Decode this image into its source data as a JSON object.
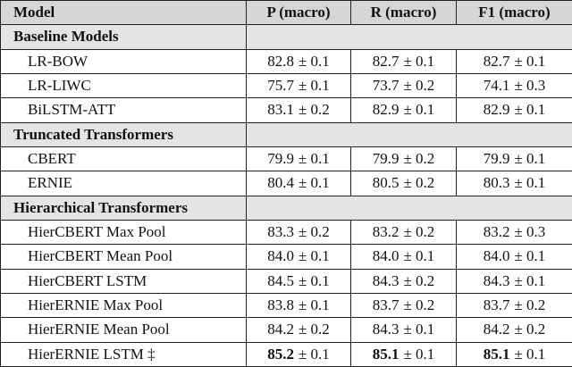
{
  "table": {
    "header": [
      "Model",
      "P (macro)",
      "R (macro)",
      "F1 (macro)"
    ],
    "sections": [
      {
        "title": "Baseline Models",
        "rows": [
          {
            "model": "LR-BOW",
            "cells": [
              {
                "mean": "82.8",
                "err": "± 0.1"
              },
              {
                "mean": "82.7",
                "err": "± 0.1"
              },
              {
                "mean": "82.7",
                "err": "± 0.1"
              }
            ]
          },
          {
            "model": "LR-LIWC",
            "cells": [
              {
                "mean": "75.7",
                "err": "± 0.1"
              },
              {
                "mean": "73.7",
                "err": "± 0.2"
              },
              {
                "mean": "74.1",
                "err": "± 0.3"
              }
            ]
          },
          {
            "model": "BiLSTM-ATT",
            "cells": [
              {
                "mean": "83.1",
                "err": "± 0.2"
              },
              {
                "mean": "82.9",
                "err": "± 0.1"
              },
              {
                "mean": "82.9",
                "err": "± 0.1"
              }
            ]
          }
        ]
      },
      {
        "title": "Truncated Transformers",
        "rows": [
          {
            "model": "CBERT",
            "cells": [
              {
                "mean": "79.9",
                "err": "± 0.1"
              },
              {
                "mean": "79.9",
                "err": "± 0.2"
              },
              {
                "mean": "79.9",
                "err": "± 0.1"
              }
            ]
          },
          {
            "model": "ERNIE",
            "cells": [
              {
                "mean": "80.4",
                "err": "± 0.1"
              },
              {
                "mean": "80.5",
                "err": "± 0.2"
              },
              {
                "mean": "80.3",
                "err": "± 0.1"
              }
            ]
          }
        ]
      },
      {
        "title": "Hierarchical Transformers",
        "rows": [
          {
            "model": "HierCBERT Max Pool",
            "cells": [
              {
                "mean": "83.3",
                "err": "± 0.2"
              },
              {
                "mean": "83.2",
                "err": "± 0.2"
              },
              {
                "mean": "83.2",
                "err": "± 0.3"
              }
            ]
          },
          {
            "model": "HierCBERT Mean Pool",
            "cells": [
              {
                "mean": "84.0",
                "err": "± 0.1"
              },
              {
                "mean": "84.0",
                "err": "± 0.1"
              },
              {
                "mean": "84.0",
                "err": "± 0.1"
              }
            ]
          },
          {
            "model": "HierCBERT LSTM",
            "cells": [
              {
                "mean": "84.5",
                "err": "± 0.1"
              },
              {
                "mean": "84.3",
                "err": "± 0.2"
              },
              {
                "mean": "84.3",
                "err": "± 0.1"
              }
            ]
          },
          {
            "model": "HierERNIE Max Pool",
            "cells": [
              {
                "mean": "83.8",
                "err": "± 0.1"
              },
              {
                "mean": "83.7",
                "err": "± 0.2"
              },
              {
                "mean": "83.7",
                "err": "± 0.2"
              }
            ]
          },
          {
            "model": "HierERNIE Mean Pool",
            "cells": [
              {
                "mean": "84.2",
                "err": "± 0.2"
              },
              {
                "mean": "84.3",
                "err": "± 0.1"
              },
              {
                "mean": "84.2",
                "err": "± 0.2"
              }
            ]
          },
          {
            "model": "HierERNIE LSTM ‡",
            "bold": true,
            "cells": [
              {
                "mean": "85.2",
                "err": "± 0.1"
              },
              {
                "mean": "85.1",
                "err": "± 0.1"
              },
              {
                "mean": "85.1",
                "err": "± 0.1"
              }
            ]
          }
        ]
      }
    ]
  }
}
